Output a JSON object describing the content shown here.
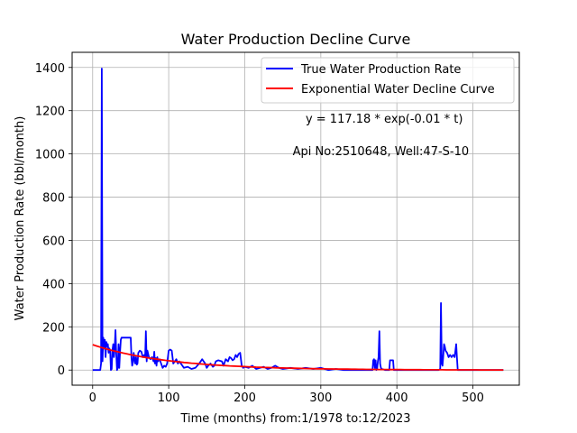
{
  "chart_data": {
    "type": "line",
    "title": "Water Production Decline Curve",
    "xlabel": "Time (months) from:1/1978 to:12/2023",
    "ylabel": "Water Production Rate (bbl/month)",
    "xlim": [
      -27,
      561
    ],
    "ylim": [
      -70,
      1470
    ],
    "xticks": [
      0,
      100,
      200,
      300,
      400,
      500
    ],
    "yticks": [
      0,
      200,
      400,
      600,
      800,
      1000,
      1200,
      1400
    ],
    "grid": true,
    "legend_position": "top-right",
    "annotations": [
      {
        "text": "y = 117.18 * exp(-0.01 * t)",
        "x": 280,
        "y": 1145
      },
      {
        "text": "Api No:2510648, Well:47-S-10",
        "x": 263,
        "y": 995
      }
    ],
    "series": [
      {
        "name": "True Water Production Rate",
        "color": "#0000ff",
        "style": "solid",
        "points": [
          [
            0,
            0
          ],
          [
            10,
            0
          ],
          [
            11,
            30
          ],
          [
            12,
            1395
          ],
          [
            13,
            40
          ],
          [
            14,
            150
          ],
          [
            15,
            100
          ],
          [
            16,
            140
          ],
          [
            17,
            60
          ],
          [
            18,
            130
          ],
          [
            19,
            110
          ],
          [
            20,
            120
          ],
          [
            21,
            80
          ],
          [
            22,
            100
          ],
          [
            23,
            90
          ],
          [
            24,
            0
          ],
          [
            25,
            5
          ],
          [
            26,
            90
          ],
          [
            27,
            120
          ],
          [
            28,
            60
          ],
          [
            29,
            100
          ],
          [
            30,
            185
          ],
          [
            31,
            80
          ],
          [
            32,
            0
          ],
          [
            33,
            10
          ],
          [
            34,
            120
          ],
          [
            35,
            10
          ],
          [
            36,
            80
          ],
          [
            37,
            140
          ],
          [
            38,
            150
          ],
          [
            40,
            150
          ],
          [
            45,
            150
          ],
          [
            50,
            150
          ],
          [
            51,
            60
          ],
          [
            52,
            20
          ],
          [
            53,
            35
          ],
          [
            54,
            80
          ],
          [
            55,
            50
          ],
          [
            56,
            30
          ],
          [
            57,
            60
          ],
          [
            58,
            25
          ],
          [
            59,
            30
          ],
          [
            60,
            80
          ],
          [
            62,
            90
          ],
          [
            64,
            85
          ],
          [
            66,
            60
          ],
          [
            68,
            70
          ],
          [
            69,
            60
          ],
          [
            70,
            180
          ],
          [
            71,
            40
          ],
          [
            72,
            90
          ],
          [
            74,
            60
          ],
          [
            76,
            50
          ],
          [
            78,
            60
          ],
          [
            80,
            40
          ],
          [
            81,
            85
          ],
          [
            82,
            30
          ],
          [
            83,
            55
          ],
          [
            84,
            20
          ],
          [
            85,
            60
          ],
          [
            86,
            40
          ],
          [
            88,
            50
          ],
          [
            90,
            30
          ],
          [
            92,
            10
          ],
          [
            94,
            20
          ],
          [
            96,
            15
          ],
          [
            98,
            30
          ],
          [
            100,
            90
          ],
          [
            102,
            95
          ],
          [
            104,
            90
          ],
          [
            106,
            30
          ],
          [
            108,
            40
          ],
          [
            110,
            50
          ],
          [
            112,
            30
          ],
          [
            114,
            40
          ],
          [
            116,
            30
          ],
          [
            118,
            20
          ],
          [
            120,
            10
          ],
          [
            125,
            15
          ],
          [
            130,
            5
          ],
          [
            135,
            10
          ],
          [
            140,
            30
          ],
          [
            142,
            40
          ],
          [
            144,
            50
          ],
          [
            146,
            40
          ],
          [
            148,
            30
          ],
          [
            150,
            10
          ],
          [
            152,
            20
          ],
          [
            155,
            30
          ],
          [
            158,
            15
          ],
          [
            160,
            20
          ],
          [
            162,
            40
          ],
          [
            165,
            45
          ],
          [
            170,
            40
          ],
          [
            172,
            20
          ],
          [
            175,
            50
          ],
          [
            178,
            40
          ],
          [
            180,
            60
          ],
          [
            182,
            55
          ],
          [
            184,
            45
          ],
          [
            186,
            50
          ],
          [
            188,
            70
          ],
          [
            190,
            60
          ],
          [
            192,
            75
          ],
          [
            194,
            80
          ],
          [
            196,
            20
          ],
          [
            198,
            10
          ],
          [
            200,
            15
          ],
          [
            205,
            10
          ],
          [
            210,
            20
          ],
          [
            215,
            5
          ],
          [
            220,
            10
          ],
          [
            225,
            15
          ],
          [
            230,
            5
          ],
          [
            235,
            10
          ],
          [
            240,
            20
          ],
          [
            245,
            10
          ],
          [
            250,
            5
          ],
          [
            260,
            10
          ],
          [
            270,
            5
          ],
          [
            280,
            10
          ],
          [
            290,
            5
          ],
          [
            300,
            10
          ],
          [
            310,
            0
          ],
          [
            320,
            5
          ],
          [
            330,
            0
          ],
          [
            340,
            0
          ],
          [
            350,
            0
          ],
          [
            360,
            0
          ],
          [
            368,
            0
          ],
          [
            369,
            45
          ],
          [
            370,
            50
          ],
          [
            371,
            10
          ],
          [
            372,
            45
          ],
          [
            373,
            0
          ],
          [
            374,
            5
          ],
          [
            375,
            40
          ],
          [
            376,
            60
          ],
          [
            377,
            180
          ],
          [
            378,
            30
          ],
          [
            379,
            10
          ],
          [
            380,
            5
          ],
          [
            385,
            0
          ],
          [
            390,
            0
          ],
          [
            391,
            45
          ],
          [
            395,
            45
          ],
          [
            396,
            0
          ],
          [
            400,
            0
          ],
          [
            420,
            0
          ],
          [
            440,
            0
          ],
          [
            455,
            0
          ],
          [
            457,
            5
          ],
          [
            458,
            310
          ],
          [
            459,
            30
          ],
          [
            460,
            20
          ],
          [
            461,
            60
          ],
          [
            462,
            120
          ],
          [
            463,
            110
          ],
          [
            464,
            90
          ],
          [
            466,
            80
          ],
          [
            468,
            60
          ],
          [
            470,
            70
          ],
          [
            472,
            60
          ],
          [
            474,
            70
          ],
          [
            476,
            60
          ],
          [
            478,
            120
          ],
          [
            479,
            60
          ],
          [
            480,
            0
          ],
          [
            490,
            0
          ],
          [
            500,
            0
          ],
          [
            510,
            0
          ],
          [
            520,
            0
          ],
          [
            530,
            0
          ],
          [
            540,
            0
          ]
        ]
      },
      {
        "name": "Exponential Water Decline Curve",
        "color": "#ff0000",
        "style": "solid",
        "function": {
          "a": 117.18,
          "b": -0.01,
          "x_start": 0,
          "x_end": 540
        }
      }
    ]
  }
}
